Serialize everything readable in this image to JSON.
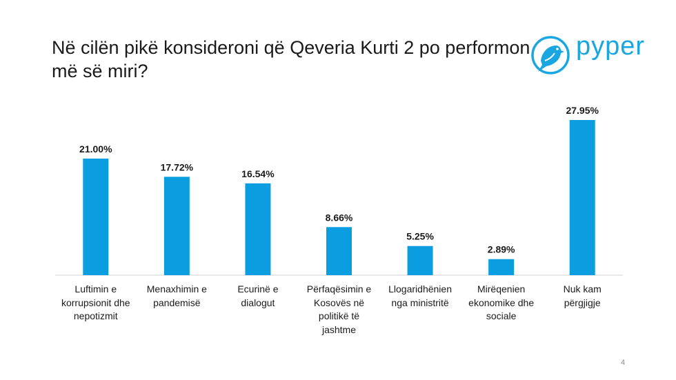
{
  "slide": {
    "title_line1": "Në cilën pikë konsideroni që Qeveria Kurti 2 po performon",
    "title_line2": "më së miri?",
    "page_number": "4"
  },
  "logo": {
    "text": "pyper",
    "color": "#1aa6e1"
  },
  "chart_data": {
    "type": "bar",
    "title": "Në cilën pikë konsideroni që Qeveria Kurti 2 po performon më së miri?",
    "categories": [
      [
        "Luftimin e",
        "korrupsionit dhe",
        "nepotizmit"
      ],
      [
        "Menaxhimin e",
        "pandemisë"
      ],
      [
        "Ecurinë e",
        "dialogut"
      ],
      [
        "Përfaqësimin e",
        "Kosovës në",
        "politikë të",
        "jashtme"
      ],
      [
        "Llogaridhënien",
        "nga ministritë"
      ],
      [
        "Mirëqenien",
        "ekonomike dhe",
        "sociale"
      ],
      [
        "Nuk kam",
        "përgjigje"
      ]
    ],
    "values": [
      21.0,
      17.72,
      16.54,
      8.66,
      5.25,
      2.89,
      27.95
    ],
    "value_labels": [
      "21.00%",
      "17.72%",
      "16.54%",
      "8.66%",
      "5.25%",
      "2.89%",
      "27.95%"
    ],
    "ylim": [
      0,
      30
    ],
    "bar_color": "#0a9ee0",
    "xlabel": "",
    "ylabel": ""
  }
}
